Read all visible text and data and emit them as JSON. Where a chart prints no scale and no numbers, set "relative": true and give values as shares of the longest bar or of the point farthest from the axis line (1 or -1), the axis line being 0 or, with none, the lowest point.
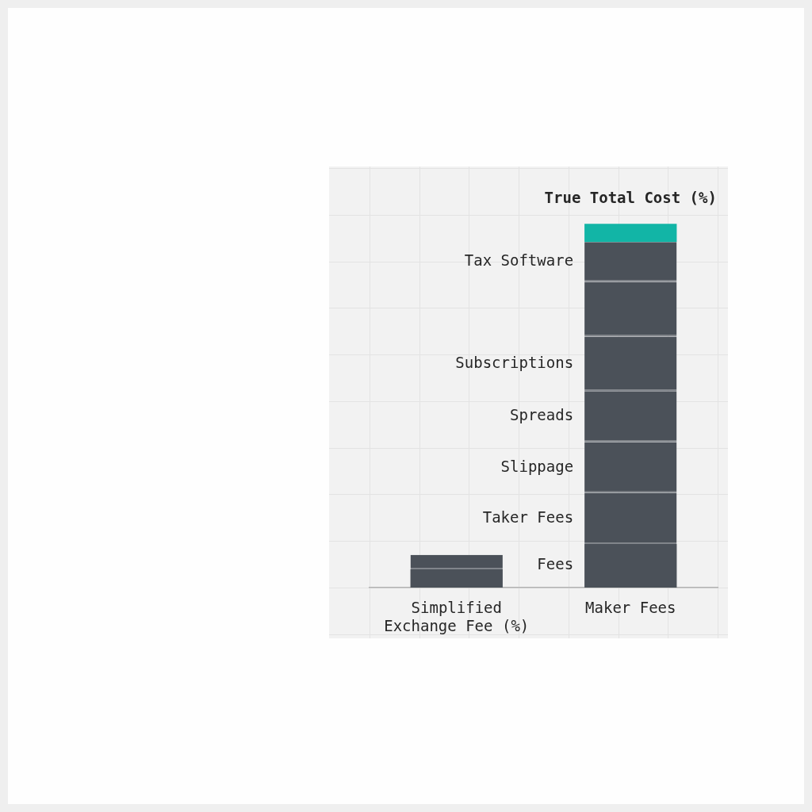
{
  "chart_data": {
    "type": "bar",
    "categories": [
      "Simplified Exchange Fee (%)",
      "Maker Fees"
    ],
    "stacked": true,
    "relative": true,
    "grid": true,
    "series": [
      {
        "name": "Fees",
        "color": "#4b5159",
        "values": [
          0.05,
          0.12
        ]
      },
      {
        "name": "Taker Fees",
        "color": "#4b5159",
        "values": [
          0.04,
          0.14
        ]
      },
      {
        "name": "Slippage",
        "color": "#4b5159",
        "values": [
          null,
          0.14
        ]
      },
      {
        "name": "Spreads",
        "color": "#4b5159",
        "values": [
          null,
          0.14
        ]
      },
      {
        "name": "Subscriptions",
        "color": "#4b5159",
        "values": [
          null,
          0.15
        ]
      },
      {
        "color": "#4b5159",
        "values": [
          null,
          0.15
        ]
      },
      {
        "name": "Tax Software",
        "color": "#4b5159",
        "values": [
          null,
          0.11
        ]
      },
      {
        "color": "#12b5a6",
        "values": [
          null,
          0.05
        ]
      }
    ],
    "annotations": [
      {
        "text": "True Total Cost (%)",
        "x": "Maker Fees",
        "y": 1
      }
    ]
  }
}
